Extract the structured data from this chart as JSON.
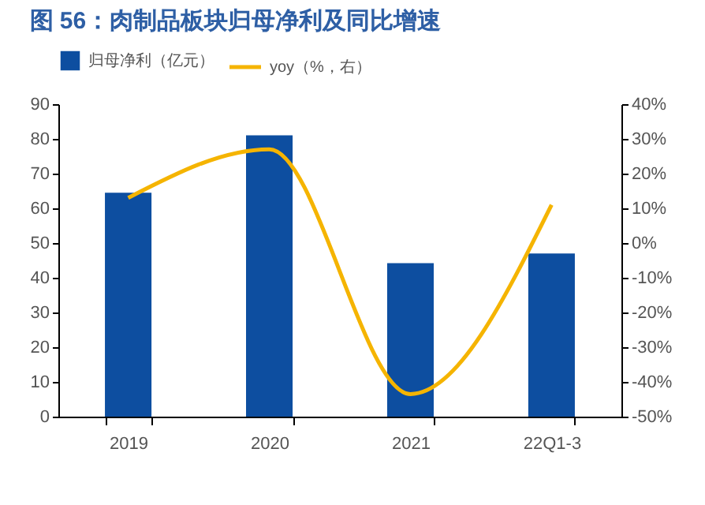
{
  "chart_data": {
    "type": "bar",
    "title": "图 56：肉制品板块归母净利及同比增速",
    "categories": [
      "2019",
      "2020",
      "2021",
      "22Q1-3"
    ],
    "series": [
      {
        "name": "归母净利（亿元）",
        "color": "#0d4ea0",
        "values": [
          64.5,
          81,
          44.2,
          47
        ]
      },
      {
        "name": "yoy（%，右）",
        "type": "line",
        "axis": "y2",
        "color": "#f5b400",
        "values": [
          13,
          27,
          -43.5,
          11
        ]
      }
    ],
    "ylim": [
      0,
      90
    ],
    "yticks": [
      0,
      10,
      20,
      30,
      40,
      50,
      60,
      70,
      80,
      90
    ],
    "y2lim": [
      -50,
      40
    ],
    "y2ticks": [
      {
        "value": -50,
        "label": "-50%"
      },
      {
        "value": -40,
        "label": "-40%"
      },
      {
        "value": -30,
        "label": "-30%"
      },
      {
        "value": -20,
        "label": "-20%"
      },
      {
        "value": -10,
        "label": "-10%"
      },
      {
        "value": 0,
        "label": "0%"
      },
      {
        "value": 10,
        "label": "10%"
      },
      {
        "value": 20,
        "label": "20%"
      },
      {
        "value": 30,
        "label": "30%"
      },
      {
        "value": 40,
        "label": "40%"
      }
    ],
    "grid": false,
    "legend": "top"
  }
}
